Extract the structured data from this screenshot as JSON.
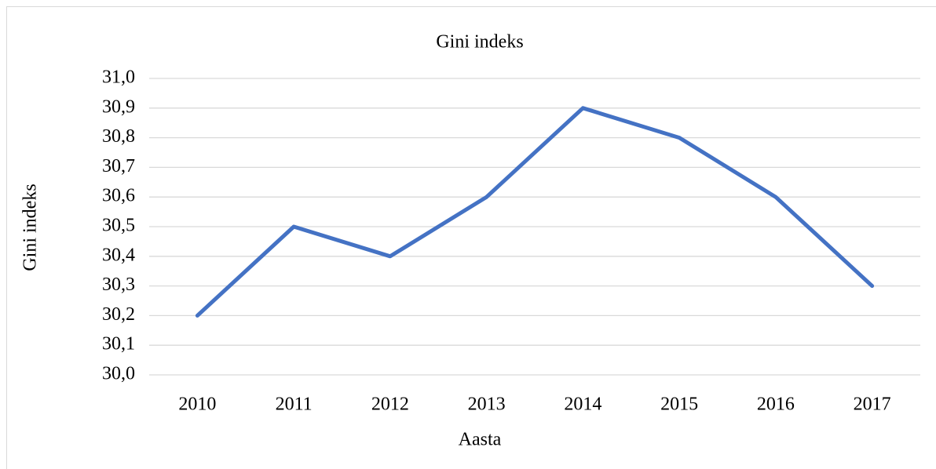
{
  "chart_data": {
    "type": "line",
    "title": "Gini indeks",
    "x_label": "Aasta",
    "y_label": "Gini indeks",
    "categories": [
      "2010",
      "2011",
      "2012",
      "2013",
      "2014",
      "2015",
      "2016",
      "2017"
    ],
    "series": [
      {
        "name": "Gini indeks",
        "color": "#4472c4",
        "values": [
          30.2,
          30.5,
          30.4,
          30.6,
          30.9,
          30.8,
          30.6,
          30.3
        ]
      }
    ],
    "ylim": [
      30.0,
      31.0
    ],
    "yticks": [
      {
        "value": 30.0,
        "label": "30,0"
      },
      {
        "value": 30.1,
        "label": "30,1"
      },
      {
        "value": 30.2,
        "label": "30,2"
      },
      {
        "value": 30.3,
        "label": "30,3"
      },
      {
        "value": 30.4,
        "label": "30,4"
      },
      {
        "value": 30.5,
        "label": "30,5"
      },
      {
        "value": 30.6,
        "label": "30,6"
      },
      {
        "value": 30.7,
        "label": "30,7"
      },
      {
        "value": 30.8,
        "label": "30,8"
      },
      {
        "value": 30.9,
        "label": "30,9"
      },
      {
        "value": 31.0,
        "label": "31,0"
      }
    ],
    "grid": true
  }
}
